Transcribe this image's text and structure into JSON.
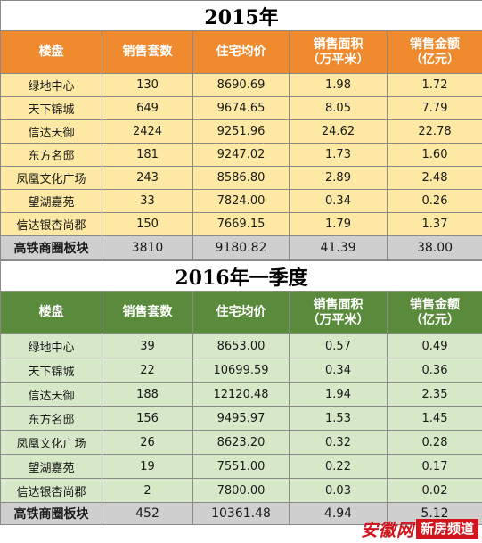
{
  "tables": [
    {
      "title": "2015年",
      "headers": [
        "楼盘",
        "销售套数",
        "住宅均价",
        "销售面积\n（万平米）",
        "销售金额\n（亿元）"
      ],
      "rows": [
        [
          "绿地中心",
          "130",
          "8690.69",
          "1.98",
          "1.72"
        ],
        [
          "天下锦城",
          "649",
          "9674.65",
          "8.05",
          "7.79"
        ],
        [
          "信达天御",
          "2424",
          "9251.96",
          "24.62",
          "22.78"
        ],
        [
          "东方名邸",
          "181",
          "9247.02",
          "1.73",
          "1.60"
        ],
        [
          "凤凰文化广场",
          "243",
          "8586.80",
          "2.89",
          "2.48"
        ],
        [
          "望湖嘉苑",
          "33",
          "7824.00",
          "0.34",
          "0.26"
        ],
        [
          "信达银杏尚郡",
          "150",
          "7669.15",
          "1.79",
          "1.37"
        ]
      ],
      "total": [
        "高铁商圈板块",
        "3810",
        "9180.82",
        "41.39",
        "38.00"
      ]
    },
    {
      "title": "2016年一季度",
      "headers": [
        "楼盘",
        "销售套数",
        "住宅均价",
        "销售面积\n（万平米）",
        "销售金额\n（亿元）"
      ],
      "rows": [
        [
          "绿地中心",
          "39",
          "8653.00",
          "0.57",
          "0.49"
        ],
        [
          "天下锦城",
          "22",
          "10699.59",
          "0.34",
          "0.36"
        ],
        [
          "信达天御",
          "188",
          "12120.48",
          "1.94",
          "2.35"
        ],
        [
          "东方名邸",
          "156",
          "9495.97",
          "1.53",
          "1.45"
        ],
        [
          "凤凰文化广场",
          "26",
          "8623.20",
          "0.32",
          "0.28"
        ],
        [
          "望湖嘉苑",
          "19",
          "7551.00",
          "0.22",
          "0.17"
        ],
        [
          "信达银杏尚郡",
          "2",
          "7800.00",
          "0.03",
          "0.02"
        ]
      ],
      "total": [
        "高铁商圈板块",
        "452",
        "10361.48",
        "4.94",
        "5.12"
      ]
    }
  ],
  "watermark": {
    "logo": "安徽网",
    "tag": "新房频道",
    "color": "#d2141c"
  },
  "colors": {
    "header_2015": "#f08a2e",
    "row_2015": "#fde9a3",
    "header_2016": "#5a8a3c",
    "row_2016": "#d6e8c8",
    "total_row": "#cfcfcf"
  }
}
